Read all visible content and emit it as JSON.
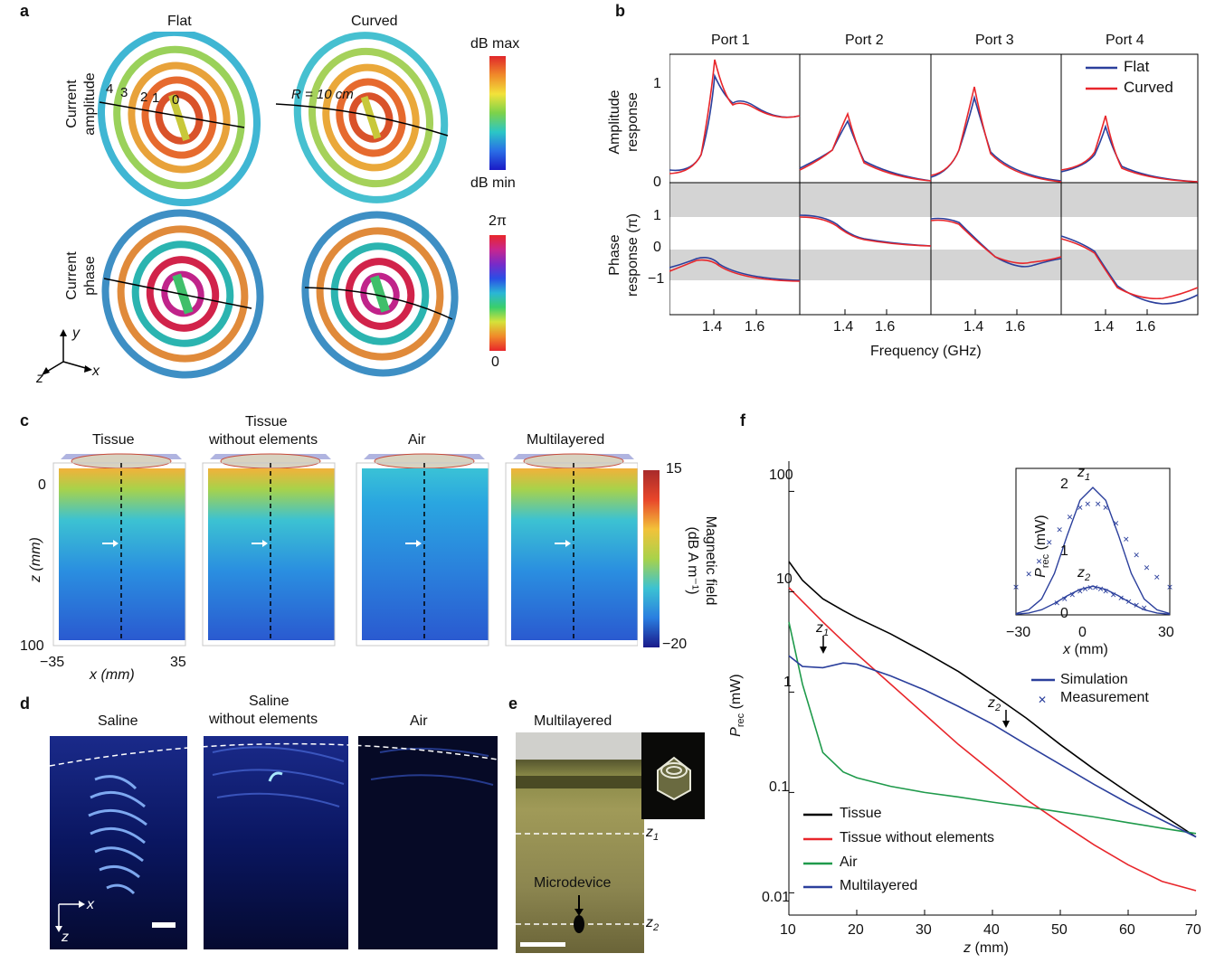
{
  "panel_a": {
    "label": "a",
    "col_flat": "Flat",
    "col_curved": "Curved",
    "row1_label": [
      "Current",
      "amplitude"
    ],
    "row2_label": [
      "Current",
      "phase"
    ],
    "ring_indices": [
      "4",
      "3",
      "2",
      "1",
      "0"
    ],
    "radius_label": "R = 10 cm",
    "cbar1_max": "dB max",
    "cbar1_min": "dB min",
    "cbar2_max": "2π",
    "cbar2_min": "0",
    "axis_y": "y",
    "axis_x": "x",
    "axis_z": "z"
  },
  "panel_b": {
    "label": "b",
    "ports": [
      "Port 1",
      "Port 2",
      "Port 3",
      "Port 4"
    ],
    "ylabel_top": [
      "Amplitude",
      "response"
    ],
    "ylabel_bottom": [
      "Phase",
      "response (π)"
    ],
    "xlabel": "Frequency (GHz)",
    "legend": [
      "Flat",
      "Curved"
    ],
    "yticks_top": [
      "1",
      "0"
    ],
    "yticks_bottom": [
      "1",
      "0",
      "−1"
    ],
    "xticks": [
      "1.4",
      "1.6"
    ]
  },
  "panel_c": {
    "label": "c",
    "titles": [
      [
        "Tissue"
      ],
      [
        "Tissue",
        "without elements"
      ],
      [
        "Air"
      ],
      [
        "Multilayered"
      ]
    ],
    "ylabel": "z (mm)",
    "xlabel": "x (mm)",
    "yticks": [
      "0",
      "100"
    ],
    "xticks": [
      "−35",
      "35"
    ],
    "cbar_max": "15",
    "cbar_min": "−20",
    "cbar_label": [
      "Magnetic field",
      "(dB A m⁻¹)"
    ]
  },
  "panel_d": {
    "label": "d",
    "titles": [
      [
        "Saline"
      ],
      [
        "Saline",
        "without elements"
      ],
      [
        "Air"
      ]
    ],
    "axis_x": "x",
    "axis_z": "z"
  },
  "panel_e": {
    "label": "e",
    "title": "Multilayered",
    "z1": "z1",
    "z2": "z2",
    "device_label": "Microdevice"
  },
  "panel_f": {
    "label": "f",
    "ylabel": "P_rec (mW)",
    "xlabel": "z (mm)",
    "yticks": [
      "100",
      "10",
      "1",
      "0.1",
      "0.01"
    ],
    "xticks": [
      "10",
      "20",
      "30",
      "40",
      "50",
      "60",
      "70"
    ],
    "legend": [
      "Tissue",
      "Tissue without elements",
      "Air",
      "Multilayered"
    ],
    "legend_colors": [
      "#000000",
      "#e8262b",
      "#1f9a4b",
      "#2b3f9c"
    ],
    "markers": [
      "z1",
      "z2"
    ],
    "inset": {
      "ylabel": "P_rec (mW)",
      "xlabel": "x (mm)",
      "yticks": [
        "2",
        "1",
        "0"
      ],
      "xticks": [
        "−30",
        "0",
        "30"
      ],
      "markers": [
        "z1",
        "z2"
      ],
      "legend": [
        "Simulation",
        "Measurement"
      ]
    }
  },
  "chart_data": [
    {
      "type": "line",
      "title": "",
      "xlabel": "z (mm)",
      "ylabel": "P_rec (mW)",
      "yscale": "log",
      "xlim": [
        10,
        70
      ],
      "ylim": [
        0.006,
        200
      ],
      "x": [
        10,
        12,
        15,
        18,
        20,
        25,
        30,
        35,
        40,
        45,
        50,
        55,
        60,
        65,
        70
      ],
      "series": [
        {
          "name": "Tissue",
          "color": "#000000",
          "values": [
            20,
            13,
            8.5,
            6.5,
            5.5,
            3.8,
            2.5,
            1.6,
            0.95,
            0.55,
            0.3,
            0.17,
            0.1,
            0.06,
            0.036
          ]
        },
        {
          "name": "Tissue without elements",
          "color": "#e8262b",
          "values": [
            11,
            8,
            5,
            3.2,
            2.4,
            1.2,
            0.6,
            0.3,
            0.16,
            0.085,
            0.05,
            0.03,
            0.019,
            0.013,
            0.0105
          ]
        },
        {
          "name": "Air",
          "color": "#1f9a4b",
          "values": [
            5,
            1.2,
            0.25,
            0.16,
            0.14,
            0.115,
            0.1,
            0.09,
            0.08,
            0.072,
            0.064,
            0.057,
            0.05,
            0.044,
            0.039
          ]
        },
        {
          "name": "Multilayered",
          "color": "#2b3f9c",
          "values": [
            2.3,
            1.8,
            1.75,
            1.95,
            1.9,
            1.45,
            1.05,
            0.72,
            0.48,
            0.3,
            0.19,
            0.12,
            0.078,
            0.053,
            0.036
          ]
        }
      ]
    },
    {
      "type": "scatter",
      "xlabel": "x (mm)",
      "ylabel": "P_rec (mW)",
      "xlim": [
        -30,
        30
      ],
      "ylim": [
        0,
        2.3
      ],
      "simulation": [
        {
          "name": "z1",
          "x": [
            -30,
            -25,
            -20,
            -15,
            -10,
            -5,
            0,
            5,
            10,
            15,
            20,
            25,
            30
          ],
          "values": [
            0.02,
            0.08,
            0.25,
            0.65,
            1.25,
            1.8,
            2.0,
            1.8,
            1.25,
            0.65,
            0.25,
            0.08,
            0.02
          ]
        },
        {
          "name": "z2",
          "x": [
            -30,
            -25,
            -20,
            -15,
            -10,
            -5,
            0,
            5,
            10,
            15,
            20,
            25,
            30
          ],
          "values": [
            0.01,
            0.03,
            0.08,
            0.18,
            0.3,
            0.4,
            0.45,
            0.4,
            0.3,
            0.18,
            0.08,
            0.03,
            0.01
          ]
        }
      ],
      "measurement": [
        {
          "name": "z1",
          "x": [
            -30,
            -25,
            -21,
            -17,
            -13,
            -9,
            -5,
            -2,
            2,
            5,
            9,
            13,
            17,
            21,
            25,
            30
          ],
          "values": [
            0.45,
            0.65,
            0.85,
            1.15,
            1.35,
            1.55,
            1.7,
            1.75,
            1.75,
            1.7,
            1.45,
            1.2,
            0.95,
            0.75,
            0.6,
            0.45
          ]
        },
        {
          "name": "z2",
          "x": [
            -14,
            -11,
            -8,
            -5,
            -3,
            -1,
            1,
            3,
            5,
            8,
            11,
            14,
            17,
            20
          ],
          "values": [
            0.2,
            0.26,
            0.33,
            0.38,
            0.42,
            0.44,
            0.44,
            0.42,
            0.38,
            0.33,
            0.28,
            0.22,
            0.16,
            0.12
          ]
        }
      ]
    }
  ]
}
